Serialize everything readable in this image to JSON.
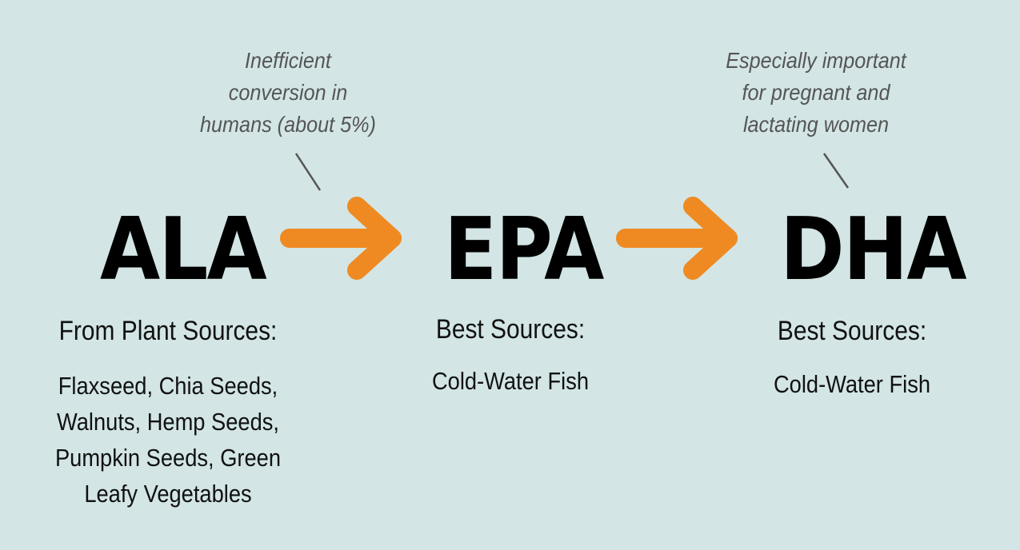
{
  "nodes": [
    {
      "label": "ALA",
      "heading": "From Plant Sources:",
      "sources": [
        "Flaxseed, Chia Seeds,",
        "Walnuts, Hemp Seeds,",
        "Pumpkin Seeds, Green",
        "Leafy Vegetables"
      ]
    },
    {
      "label": "EPA",
      "heading": "Best Sources:",
      "sources": [
        "Cold-Water Fish"
      ]
    },
    {
      "label": "DHA",
      "heading": "Best Sources:",
      "sources": [
        "Cold-Water Fish"
      ]
    }
  ],
  "notes": [
    {
      "lines": [
        "Inefficient",
        "conversion in",
        "humans (about 5%)"
      ]
    },
    {
      "lines": [
        "Especially important",
        "for pregnant and",
        "lactating women"
      ]
    }
  ],
  "colors": {
    "background": "#d3e5e5",
    "arrow": "#ef8a22",
    "note": "#555555"
  }
}
